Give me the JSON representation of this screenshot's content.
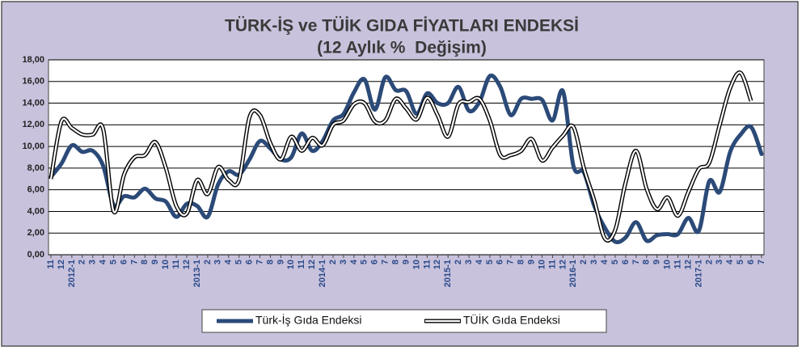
{
  "chart_data": {
    "type": "line",
    "title": "TÜRK-İŞ ve TÜİK GIDA FİYATLARI ENDEKSİ",
    "subtitle": "(12 Aylık %  Değişim)",
    "categories": [
      "11",
      "12",
      "2012-1",
      "2",
      "3",
      "4",
      "5",
      "6",
      "7",
      "8",
      "9",
      "10",
      "11",
      "12",
      "2013-1",
      "2",
      "3",
      "4",
      "5",
      "6",
      "7",
      "8",
      "9",
      "10",
      "11",
      "12",
      "2014-1",
      "2",
      "3",
      "4",
      "5",
      "6",
      "7",
      "8",
      "9",
      "10",
      "11",
      "12",
      "2015-1",
      "2",
      "3",
      "4",
      "5",
      "6",
      "7",
      "8",
      "9",
      "10",
      "11",
      "12",
      "2016-1",
      "2",
      "3",
      "4",
      "5",
      "6",
      "7",
      "8",
      "9",
      "10",
      "11",
      "12",
      "2017-1",
      "2",
      "3",
      "4",
      "5",
      "6",
      "7"
    ],
    "series": [
      {
        "name": "Türk-İş Gıda Endeksi",
        "color": "#2b4a78",
        "style": "solid",
        "values": [
          7.2,
          8.4,
          10.1,
          9.5,
          9.6,
          8.2,
          4.6,
          5.4,
          5.3,
          6.1,
          5.2,
          4.9,
          3.5,
          4.7,
          4.5,
          3.5,
          6.5,
          7.7,
          7.4,
          8.8,
          10.5,
          9.8,
          8.8,
          9.0,
          11.2,
          9.6,
          10.5,
          12.4,
          13.0,
          15.0,
          16.2,
          13.4,
          16.4,
          15.2,
          15.1,
          13.0,
          14.9,
          14.0,
          14.0,
          15.5,
          13.3,
          14.1,
          16.5,
          15.5,
          12.9,
          14.4,
          14.4,
          14.3,
          12.4,
          15.1,
          8.2,
          7.6,
          4.5,
          2.5,
          1.2,
          1.6,
          3.0,
          1.3,
          1.8,
          1.9,
          1.9,
          3.4,
          2.2,
          6.8,
          5.8,
          9.5,
          11.1,
          11.8,
          9.3
        ]
      },
      {
        "name": "TÜİK Gıda Endeksi",
        "color": "#000000",
        "style": "double",
        "values": [
          7.0,
          12.3,
          11.7,
          11.1,
          11.1,
          11.6,
          4.0,
          7.4,
          9.0,
          9.2,
          10.4,
          8.0,
          4.5,
          3.8,
          6.9,
          5.6,
          8.1,
          6.9,
          6.9,
          12.7,
          12.9,
          10.3,
          8.8,
          10.9,
          9.6,
          10.8,
          10.1,
          12.0,
          12.4,
          13.9,
          14.0,
          12.3,
          12.4,
          14.4,
          13.5,
          12.5,
          14.5,
          12.9,
          10.9,
          13.9,
          14.1,
          14.4,
          12.4,
          9.2,
          9.2,
          9.6,
          10.7,
          8.7,
          9.9,
          11.0,
          11.8,
          8.0,
          5.0,
          1.5,
          2.3,
          6.7,
          9.6,
          6.1,
          4.2,
          5.3,
          3.6,
          5.8,
          7.9,
          8.5,
          12.0,
          15.4,
          16.8,
          14.2,
          null
        ]
      }
    ],
    "ylim": [
      0,
      18
    ],
    "yticks": [
      {
        "value": 0,
        "label": "0,00"
      },
      {
        "value": 2,
        "label": "2,00"
      },
      {
        "value": 4,
        "label": "4,00"
      },
      {
        "value": 6,
        "label": "6,00"
      },
      {
        "value": 8,
        "label": "8,00"
      },
      {
        "value": 10,
        "label": "10,00"
      },
      {
        "value": 12,
        "label": "12,00"
      },
      {
        "value": 14,
        "label": "14,00"
      },
      {
        "value": 16,
        "label": "16,00"
      },
      {
        "value": 18,
        "label": "18,00"
      }
    ],
    "grid": true,
    "legend": "bottom"
  }
}
